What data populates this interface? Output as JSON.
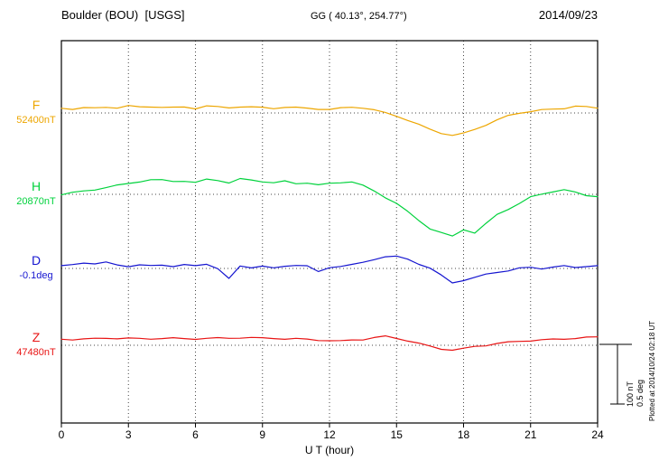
{
  "header": {
    "title": "Boulder (BOU)  [USGS]",
    "coords": "GG ( 40.13°, 254.77°)",
    "date": "2014/09/23"
  },
  "axis": {
    "xlabel": "U T (hour)"
  },
  "scale_bar": {
    "nt_label": "100 nT",
    "deg_label": "0.5 deg"
  },
  "footer_note": "Plotted at 2014/10/24 02:18 UT",
  "chart_data": {
    "type": "line",
    "title": "Boulder (BOU) [USGS] magnetogram 2014/09/23",
    "xlabel": "U T (hour)",
    "xlim": [
      0,
      24
    ],
    "x_ticks": [
      0,
      3,
      6,
      9,
      12,
      15,
      18,
      21,
      24
    ],
    "x_step_hours": 0.5,
    "value_mode": "offset_from_baseline",
    "scale_bar": {
      "nT": 100,
      "deg": 0.5
    },
    "grid": "dotted vertical at 3h intervals, dotted horizontal at each baseline",
    "legend_position": "left margin (trace letter + baseline value)",
    "series": [
      {
        "name": "F",
        "color": "#eda600",
        "units": "nT",
        "baseline": 52400,
        "baseline_label": "52400nT",
        "values": [
          8,
          7,
          9,
          8,
          10,
          9,
          12,
          10,
          11,
          10,
          9,
          10,
          8,
          12,
          10,
          9,
          11,
          10,
          9,
          8,
          10,
          9,
          8,
          7,
          6,
          8,
          10,
          9,
          5,
          0,
          -5,
          -12,
          -20,
          -28,
          -34,
          -38,
          -35,
          -28,
          -20,
          -12,
          -5,
          0,
          3,
          5,
          6,
          8,
          12,
          10,
          8
        ]
      },
      {
        "name": "H",
        "color": "#00d23c",
        "units": "nT",
        "baseline": 20870,
        "baseline_label": "20870nT",
        "values": [
          0,
          3,
          5,
          8,
          12,
          15,
          18,
          22,
          25,
          24,
          22,
          23,
          20,
          25,
          24,
          20,
          26,
          24,
          22,
          20,
          22,
          18,
          20,
          16,
          18,
          20,
          22,
          15,
          5,
          -5,
          -15,
          -30,
          -45,
          -58,
          -65,
          -72,
          -60,
          -65,
          -50,
          -35,
          -25,
          -15,
          -5,
          0,
          5,
          8,
          3,
          -2,
          -3
        ]
      },
      {
        "name": "D",
        "color": "#1515d0",
        "units": "deg",
        "baseline": -0.1,
        "baseline_label": "-0.1deg",
        "values": [
          0.02,
          0.03,
          0.05,
          0.04,
          0.05,
          0.03,
          0.02,
          0.03,
          0.02,
          0.03,
          0.02,
          0.03,
          0.02,
          0.04,
          0,
          -0.09,
          0.02,
          0.01,
          0.02,
          0,
          0.02,
          0.03,
          0.02,
          -0.03,
          0.01,
          0.02,
          0.03,
          0.05,
          0.08,
          0.1,
          0.1,
          0.08,
          0.04,
          0,
          -0.06,
          -0.12,
          -0.1,
          -0.08,
          -0.05,
          -0.03,
          -0.02,
          0,
          0.01,
          0,
          0.01,
          0.02,
          0.01,
          0.02,
          0.02
        ]
      },
      {
        "name": "Z",
        "color": "#e81414",
        "units": "nT",
        "baseline": 47480,
        "baseline_label": "47480nT",
        "values": [
          10,
          10,
          11,
          11,
          12,
          12,
          12,
          11,
          11,
          12,
          12,
          11,
          11,
          12,
          12,
          12,
          13,
          13,
          12,
          12,
          11,
          11,
          10,
          9,
          8,
          7,
          9,
          10,
          13,
          15,
          12,
          8,
          3,
          -2,
          -6,
          -8,
          -6,
          -2,
          0,
          3,
          5,
          7,
          8,
          9,
          10,
          11,
          12,
          13,
          14
        ]
      }
    ]
  }
}
